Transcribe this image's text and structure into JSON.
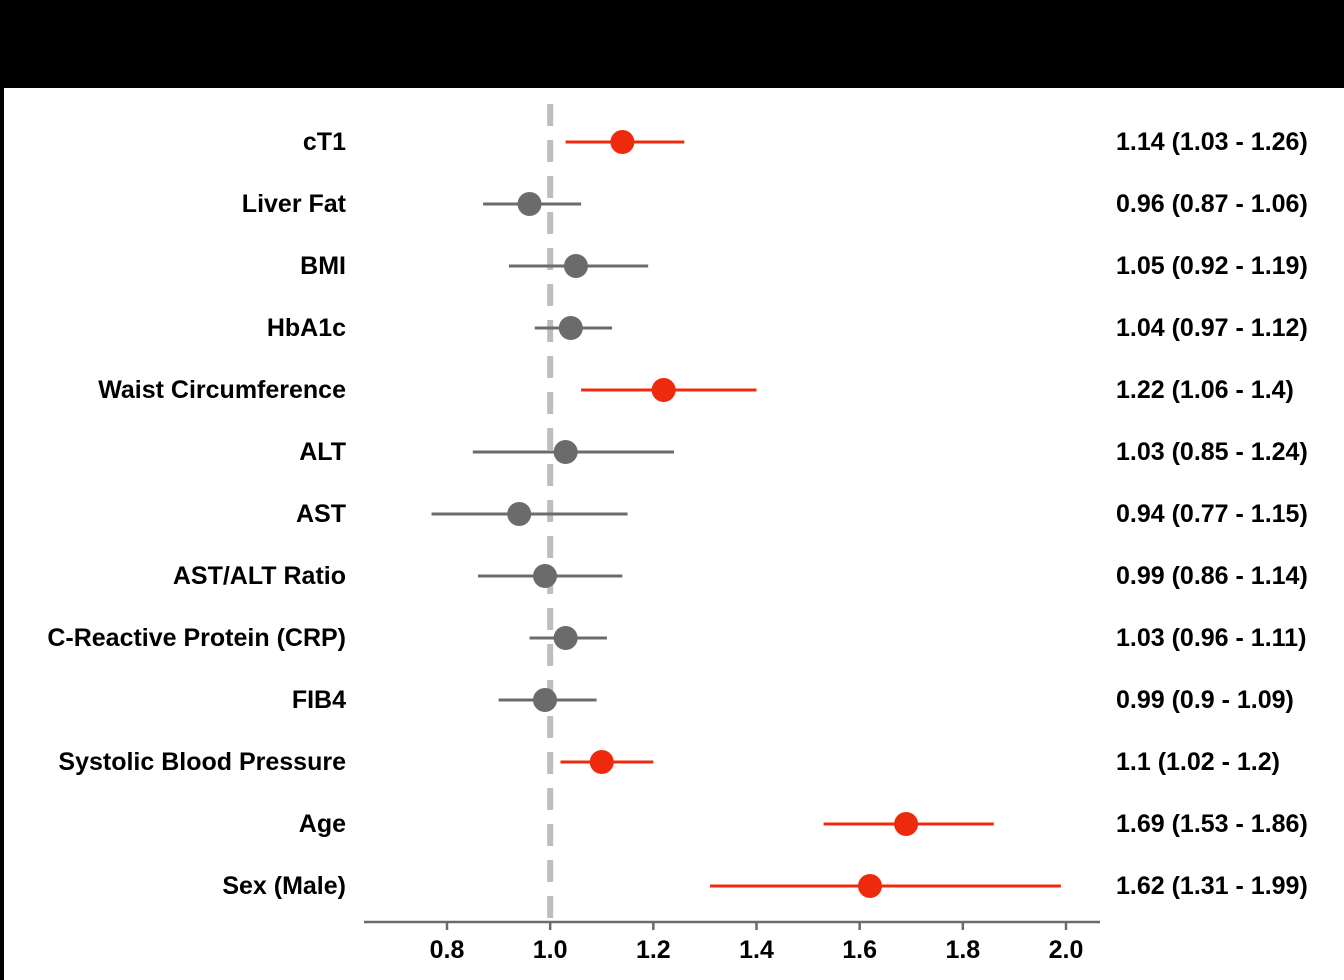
{
  "chart_data": {
    "type": "forest",
    "title": "",
    "xlabel": "",
    "ylabel": "",
    "xlim": [
      0.63,
      2.07
    ],
    "xticks": [
      0.8,
      1.0,
      1.2,
      1.4,
      1.6,
      1.8,
      2.0
    ],
    "xtick_labels": [
      "0.8",
      "1.0",
      "1.2",
      "1.4",
      "1.6",
      "1.8",
      "2.0"
    ],
    "reference_line": 1.0,
    "colors": {
      "significant": "#EE2A0E",
      "not_significant": "#6B6B6B",
      "reference": "#BDBDBD",
      "axis": "#6B6B6B"
    },
    "rows": [
      {
        "label": "cT1",
        "estimate": 1.14,
        "lower": 1.03,
        "upper": 1.26,
        "significant": true,
        "ci_text": "1.14 (1.03 - 1.26)"
      },
      {
        "label": "Liver Fat",
        "estimate": 0.96,
        "lower": 0.87,
        "upper": 1.06,
        "significant": false,
        "ci_text": "0.96 (0.87 - 1.06)"
      },
      {
        "label": "BMI",
        "estimate": 1.05,
        "lower": 0.92,
        "upper": 1.19,
        "significant": false,
        "ci_text": "1.05 (0.92 - 1.19)"
      },
      {
        "label": "HbA1c",
        "estimate": 1.04,
        "lower": 0.97,
        "upper": 1.12,
        "significant": false,
        "ci_text": "1.04 (0.97 - 1.12)"
      },
      {
        "label": "Waist Circumference",
        "estimate": 1.22,
        "lower": 1.06,
        "upper": 1.4,
        "significant": true,
        "ci_text": "1.22 (1.06 - 1.4)"
      },
      {
        "label": "ALT",
        "estimate": 1.03,
        "lower": 0.85,
        "upper": 1.24,
        "significant": false,
        "ci_text": "1.03 (0.85 - 1.24)"
      },
      {
        "label": "AST",
        "estimate": 0.94,
        "lower": 0.77,
        "upper": 1.15,
        "significant": false,
        "ci_text": "0.94 (0.77 - 1.15)"
      },
      {
        "label": "AST/ALT Ratio",
        "estimate": 0.99,
        "lower": 0.86,
        "upper": 1.14,
        "significant": false,
        "ci_text": "0.99 (0.86 - 1.14)"
      },
      {
        "label": "C-Reactive Protein (CRP)",
        "estimate": 1.03,
        "lower": 0.96,
        "upper": 1.11,
        "significant": false,
        "ci_text": "1.03 (0.96 - 1.11)"
      },
      {
        "label": "FIB4",
        "estimate": 0.99,
        "lower": 0.9,
        "upper": 1.09,
        "significant": false,
        "ci_text": "0.99 (0.9 - 1.09)"
      },
      {
        "label": "Systolic Blood Pressure",
        "estimate": 1.1,
        "lower": 1.02,
        "upper": 1.2,
        "significant": true,
        "ci_text": "1.1 (1.02 - 1.2)"
      },
      {
        "label": "Age",
        "estimate": 1.69,
        "lower": 1.53,
        "upper": 1.86,
        "significant": true,
        "ci_text": "1.69 (1.53 - 1.86)"
      },
      {
        "label": "Sex (Male)",
        "estimate": 1.62,
        "lower": 1.31,
        "upper": 1.99,
        "significant": true,
        "ci_text": "1.62 (1.31 - 1.99)"
      }
    ]
  }
}
